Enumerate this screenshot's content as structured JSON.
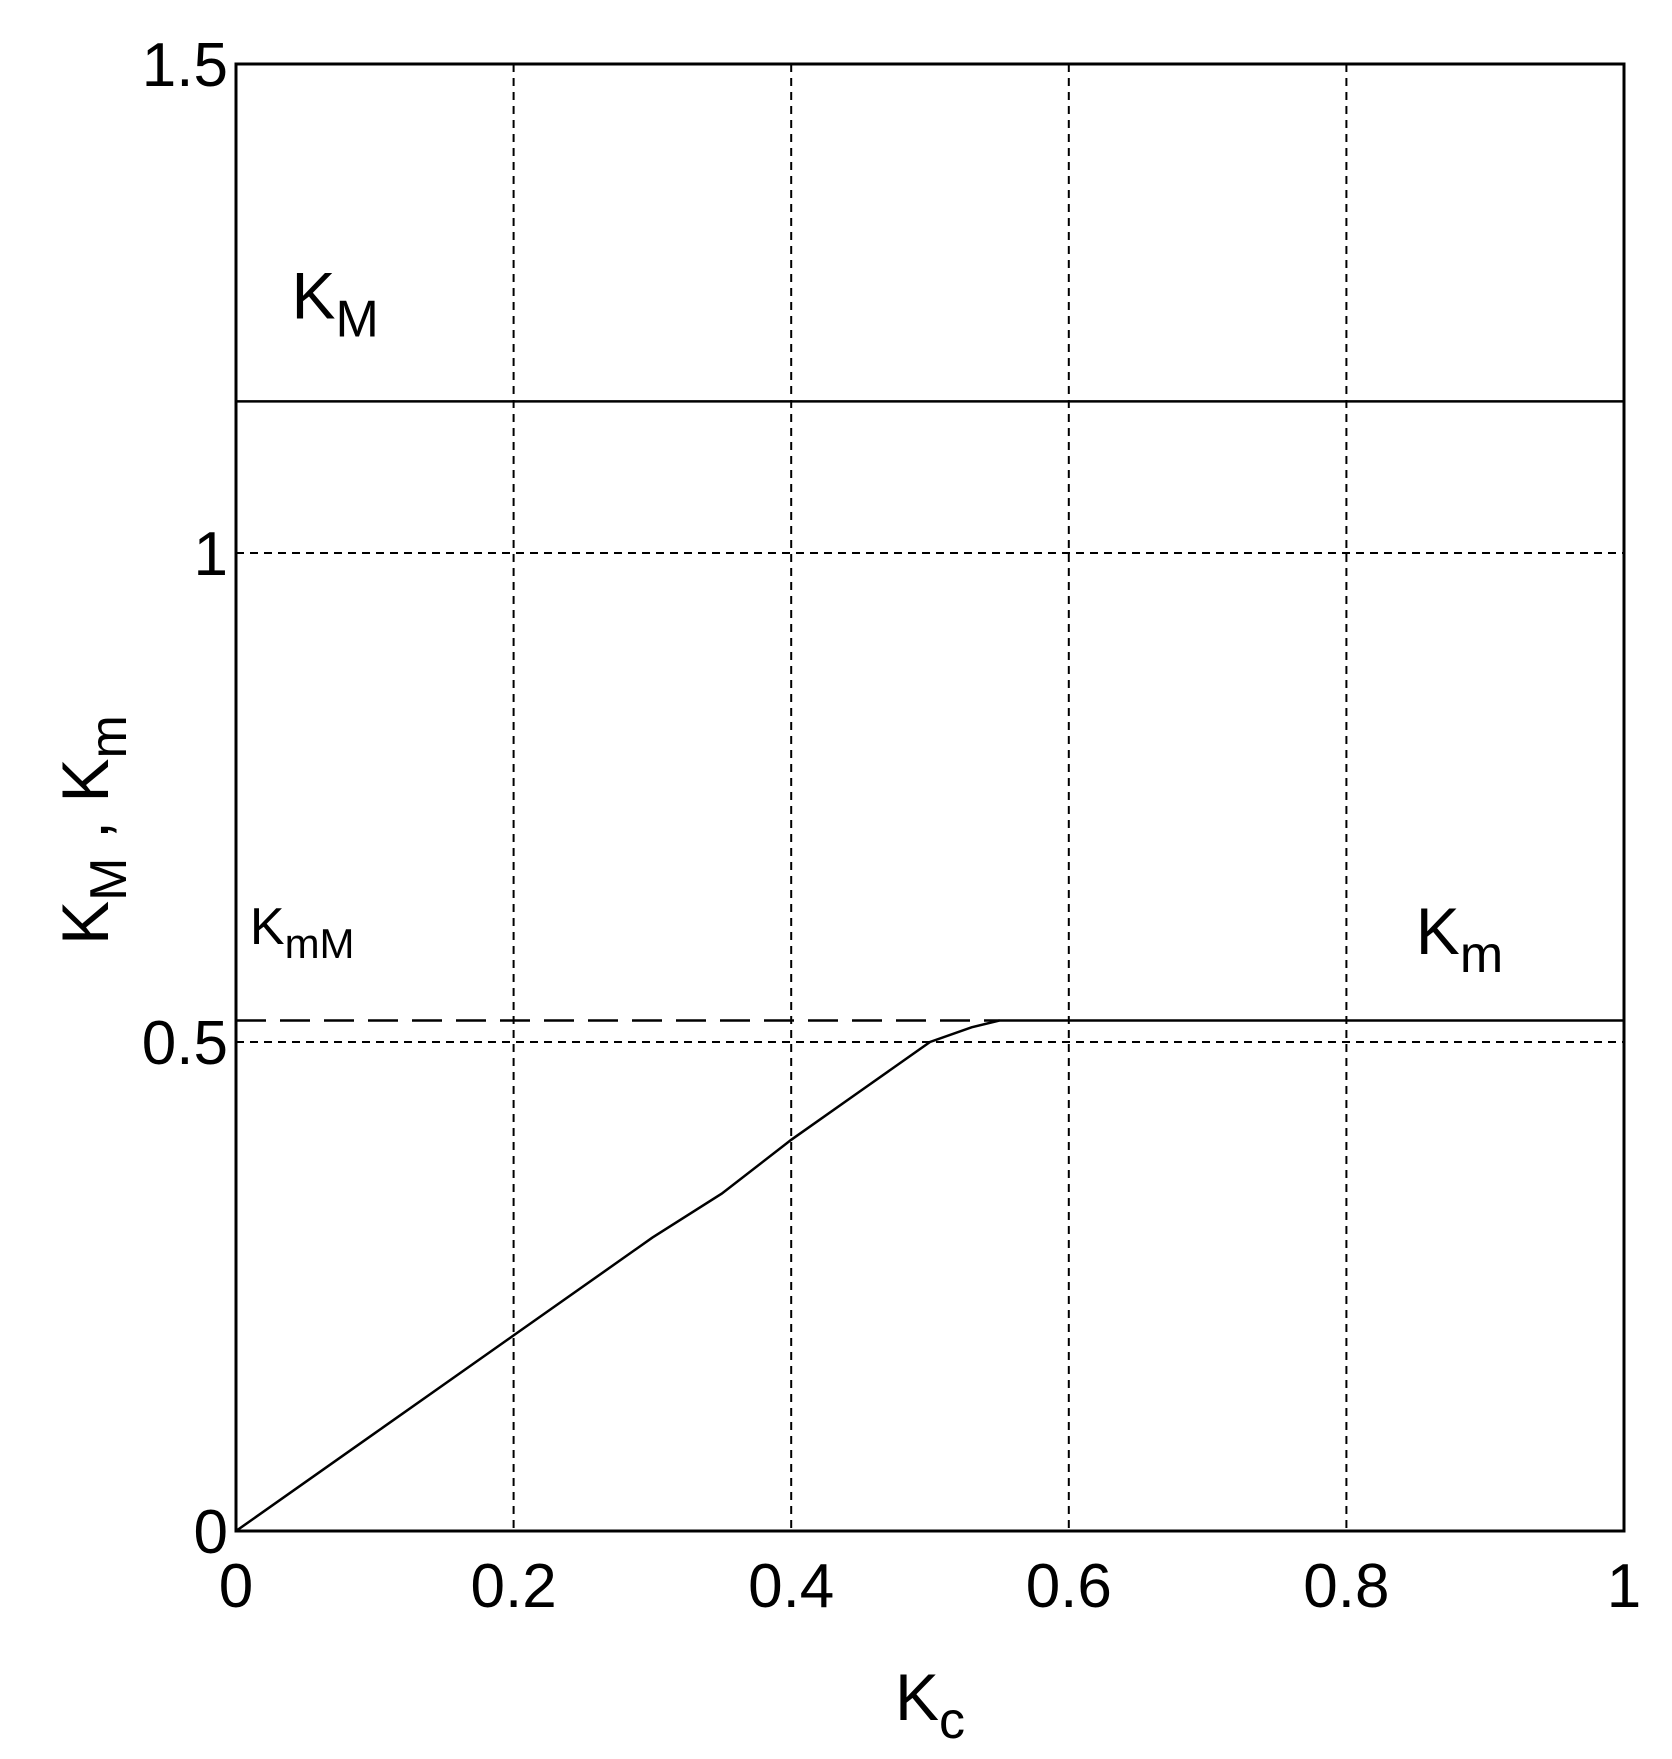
{
  "chart_data": {
    "type": "line",
    "xlabel": {
      "main": "K",
      "sub": "c"
    },
    "ylabel": {
      "main1": "K",
      "sub1": "M",
      "sep": " , ",
      "main2": "K",
      "sub2": "m"
    },
    "xlim": [
      0,
      1
    ],
    "ylim": [
      0,
      1.5
    ],
    "xticks": [
      0,
      0.2,
      0.4,
      0.6,
      0.8,
      1
    ],
    "xtick_labels": [
      "0",
      "0.2",
      "0.4",
      "0.6",
      "0.8",
      "1"
    ],
    "yticks": [
      0,
      0.5,
      1,
      1.5
    ],
    "ytick_labels": [
      "0",
      "0.5",
      "1",
      "1.5"
    ],
    "grid": true,
    "series": [
      {
        "name": "KM",
        "style": "solid",
        "x": [
          0,
          1
        ],
        "y": [
          1.155,
          1.155
        ]
      },
      {
        "name": "Km",
        "style": "solid",
        "x": [
          0,
          0.1,
          0.2,
          0.3,
          0.35,
          0.4,
          0.45,
          0.5,
          0.53,
          0.55,
          0.6,
          0.8,
          1.0
        ],
        "y": [
          0,
          0.1,
          0.2,
          0.3,
          0.345,
          0.4,
          0.45,
          0.5,
          0.515,
          0.522,
          0.522,
          0.522,
          0.522
        ]
      },
      {
        "name": "KmM",
        "style": "dashed",
        "x": [
          0,
          0.55
        ],
        "y": [
          0.522,
          0.522
        ]
      }
    ],
    "annotations": [
      {
        "main": "K",
        "sub": "M",
        "x": 0.04,
        "y": 1.24,
        "size": "large"
      },
      {
        "main": "K",
        "sub": "m",
        "x": 0.85,
        "y": 0.59,
        "size": "large"
      },
      {
        "main": "K",
        "sub": "mM",
        "x": 0.01,
        "y": 0.6,
        "size": "small"
      }
    ]
  }
}
